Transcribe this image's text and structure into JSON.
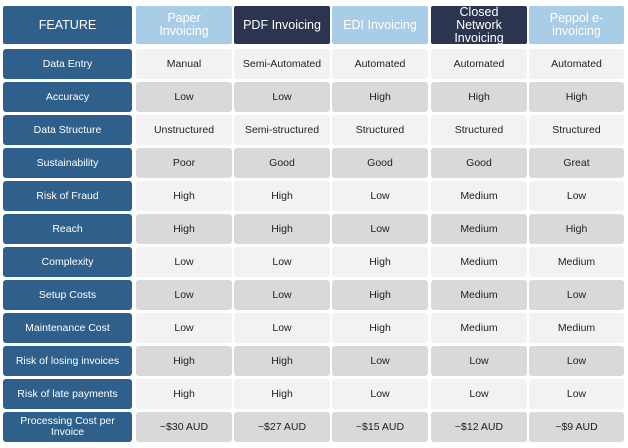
{
  "table": {
    "feature_header": "FEATURE",
    "columns": [
      {
        "label": "Paper\nInvoicing",
        "style": "light"
      },
      {
        "label": "PDF Invoicing",
        "style": "dark"
      },
      {
        "label": "EDI Invoicing",
        "style": "light"
      },
      {
        "label": "Closed\nNetwork\nInvoicing",
        "style": "dark"
      },
      {
        "label": "Peppol e-\ninvoicing",
        "style": "light"
      }
    ],
    "rows": [
      {
        "feature": "Data Entry",
        "values": [
          "Manual",
          "Semi-Automated",
          "Automated",
          "Automated",
          "Automated"
        ]
      },
      {
        "feature": "Accuracy",
        "values": [
          "Low",
          "Low",
          "High",
          "High",
          "High"
        ]
      },
      {
        "feature": "Data Structure",
        "values": [
          "Unstructured",
          "Semi-structured",
          "Structured",
          "Structured",
          "Structured"
        ]
      },
      {
        "feature": "Sustainability",
        "values": [
          "Poor",
          "Good",
          "Good",
          "Good",
          "Great"
        ]
      },
      {
        "feature": "Risk of Fraud",
        "values": [
          "High",
          "High",
          "Low",
          "Medium",
          "Low"
        ]
      },
      {
        "feature": "Reach",
        "values": [
          "High",
          "High",
          "Low",
          "Medium",
          "High"
        ]
      },
      {
        "feature": "Complexity",
        "values": [
          "Low",
          "Low",
          "High",
          "Medium",
          "Medium"
        ]
      },
      {
        "feature": "Setup Costs",
        "values": [
          "Low",
          "Low",
          "High",
          "Medium",
          "Low"
        ]
      },
      {
        "feature": "Maintenance Cost",
        "values": [
          "Low",
          "Low",
          "High",
          "Medium",
          "Medium"
        ]
      },
      {
        "feature": "Risk of losing invoices",
        "values": [
          "High",
          "High",
          "Low",
          "Low",
          "Low"
        ]
      },
      {
        "feature": "Risk of late payments",
        "values": [
          "High",
          "High",
          "Low",
          "Low",
          "Low"
        ]
      },
      {
        "feature": "Processing Cost per\nInvoice",
        "values": [
          "~$30 AUD",
          "~$27 AUD",
          "~$15 AUD",
          "~$12 AUD",
          "~$9 AUD"
        ]
      }
    ]
  },
  "colors": {
    "feature_blue": "#2f5f8b",
    "header_light_blue": "#a9cde6",
    "header_dark_navy": "#2c3550",
    "row_light": "#f2f2f2",
    "row_dark": "#d9d9d9"
  }
}
